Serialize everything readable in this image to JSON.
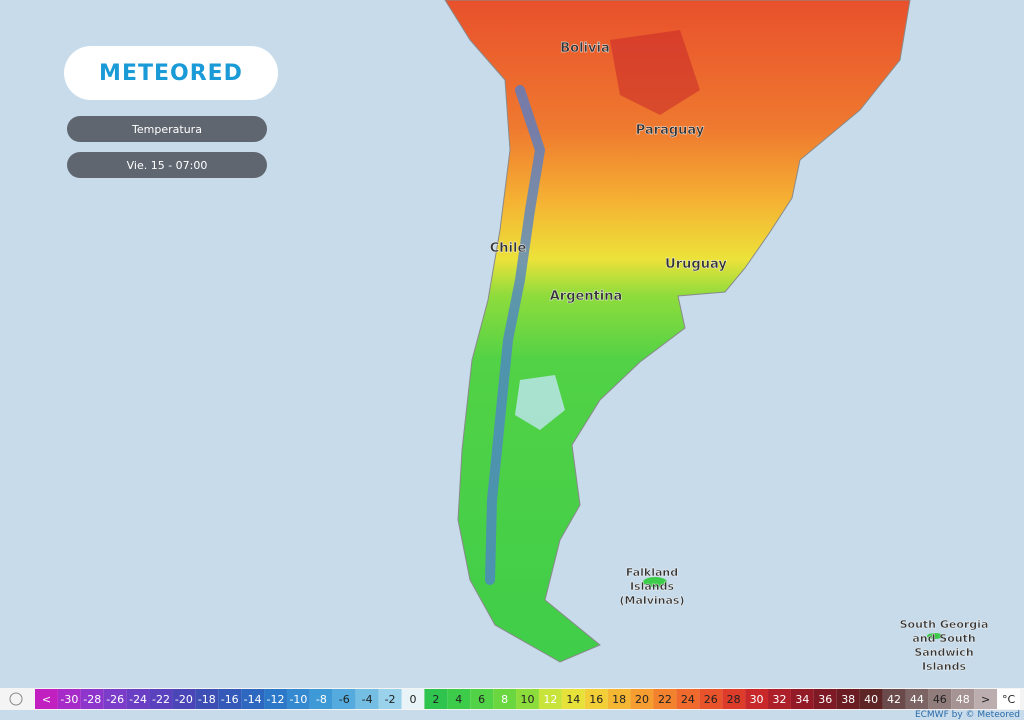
{
  "brand": "METEORED",
  "panel": {
    "layer": "Temperatura",
    "time": "Vie. 15 - 07:00"
  },
  "map_labels": [
    {
      "lines": [
        "Bolivia"
      ]
    },
    {
      "lines": [
        "Paraguay"
      ]
    },
    {
      "lines": [
        "Chile"
      ]
    },
    {
      "lines": [
        "Uruguay"
      ]
    },
    {
      "lines": [
        "Argentina"
      ]
    },
    {
      "lines": [
        "Falkland",
        "Islands",
        "(Malvinas)"
      ]
    },
    {
      "lines": [
        "South Georgia",
        "and South",
        "Sandwich",
        "Islands"
      ]
    }
  ],
  "legend": {
    "labels": [
      "<",
      "-30",
      "-28",
      "-26",
      "-24",
      "-22",
      "-20",
      "-18",
      "-16",
      "-14",
      "-12",
      "-10",
      "-8",
      "-6",
      "-4",
      "-2",
      "0",
      "2",
      "4",
      "6",
      "8",
      "10",
      "12",
      "14",
      "16",
      "18",
      "20",
      "22",
      "24",
      "26",
      "28",
      "30",
      "32",
      "34",
      "36",
      "38",
      "40",
      "42",
      "44",
      "46",
      "48",
      ">",
      "°C"
    ],
    "colors": [
      "#c21fc0",
      "#a62bc8",
      "#8e35cc",
      "#7a3cc9",
      "#6a3fc4",
      "#5a42bf",
      "#4b46b8",
      "#3d4fb5",
      "#3559b8",
      "#2d67c0",
      "#2c78c8",
      "#3489d0",
      "#3e9ad6",
      "#55abdd",
      "#74bde3",
      "#9ad1eb",
      "#e8f4f8",
      "#2ec44d",
      "#3ccc4a",
      "#52d246",
      "#6ad740",
      "#8cdc3c",
      "#c8e33a",
      "#e7e23a",
      "#f2cf36",
      "#f4b733",
      "#f59d31",
      "#f2822e",
      "#ef6a2c",
      "#e9532b",
      "#dd3c2a",
      "#c8282a",
      "#ad1f29",
      "#931b27",
      "#7d1a25",
      "#6b1c23",
      "#5d2526",
      "#6a4a4a",
      "#7d6464",
      "#917c7c",
      "#a69494",
      "#bcaeae",
      "#ffffff"
    ]
  },
  "credit": "ECMWF by © Meteored"
}
